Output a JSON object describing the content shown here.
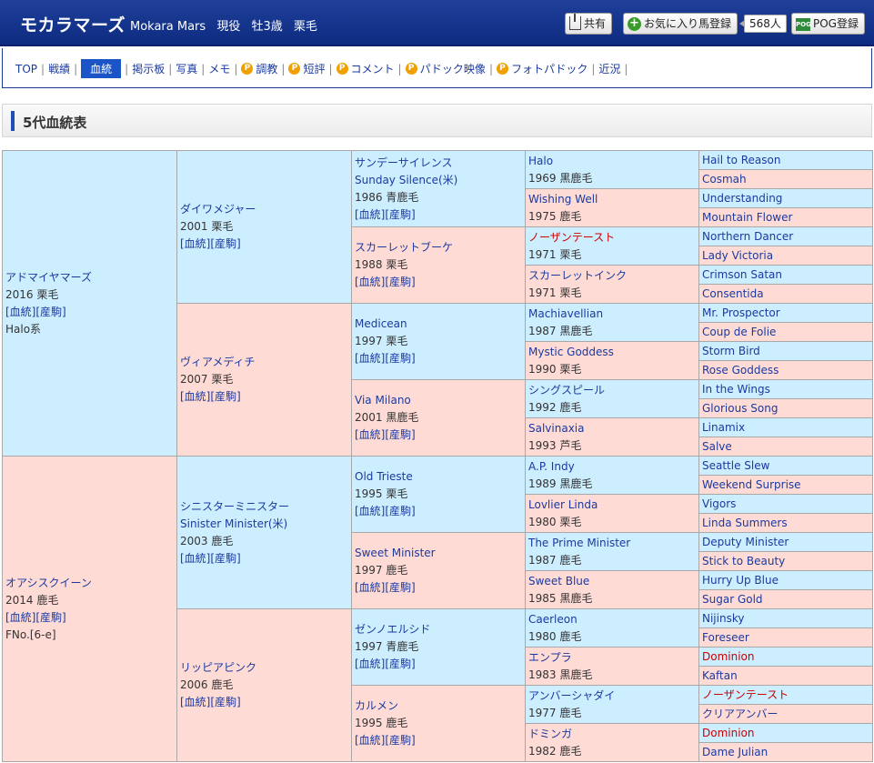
{
  "header": {
    "name": "モカラマーズ",
    "name_en": "Mokara Mars",
    "status": "現役",
    "sex_age": "牡3歳",
    "coat": "栗毛",
    "share_label": "共有",
    "favorite_label": "お気に入り馬登録",
    "favorite_count": "568人",
    "pog_label": "POG登録",
    "pog_icon_text": "POG"
  },
  "nav": {
    "items": [
      "TOP",
      "戦績",
      "血統",
      "掲示板",
      "写真",
      "メモ",
      "調教",
      "短評",
      "コメント",
      "パドック映像",
      "フォトパドック",
      "近況"
    ],
    "active": "血統",
    "premium_badge": "P"
  },
  "section": {
    "title": "5代血統表"
  },
  "links": {
    "pedigree": "[血統]",
    "foals": "[産駒]"
  },
  "pedigree": {
    "g1": [
      {
        "name": "アドマイヤマーズ",
        "year": "2016 栗毛",
        "extra": "Halo系",
        "sex": "sire"
      },
      {
        "name": "オアシスクイーン",
        "year": "2014 鹿毛",
        "extra": "FNo.[6-e]",
        "sex": "dam"
      }
    ],
    "g2": [
      {
        "name": "ダイワメジャー",
        "year": "2001 栗毛",
        "sex": "sire"
      },
      {
        "name": "ヴィアメディチ",
        "year": "2007 栗毛",
        "sex": "dam"
      },
      {
        "name": "シニスターミニスター",
        "name_en": "Sinister Minister(米)",
        "year": "2003 鹿毛",
        "sex": "sire"
      },
      {
        "name": "リッピアピンク",
        "year": "2006 鹿毛",
        "sex": "dam"
      }
    ],
    "g3": [
      {
        "name": "サンデーサイレンス",
        "name_en": "Sunday Silence(米)",
        "year": "1986 青鹿毛",
        "sex": "sire"
      },
      {
        "name": "スカーレットブーケ",
        "year": "1988 栗毛",
        "sex": "dam"
      },
      {
        "name": "Medicean",
        "year": "1997 栗毛",
        "sex": "sire"
      },
      {
        "name": "Via Milano",
        "year": "2001 黒鹿毛",
        "sex": "dam"
      },
      {
        "name": "Old Trieste",
        "year": "1995 栗毛",
        "sex": "sire"
      },
      {
        "name": "Sweet Minister",
        "year": "1997 鹿毛",
        "sex": "dam"
      },
      {
        "name": "ゼンノエルシド",
        "year": "1997 青鹿毛",
        "sex": "sire"
      },
      {
        "name": "カルメン",
        "year": "1995 鹿毛",
        "sex": "dam"
      }
    ],
    "g4": [
      {
        "name": "Halo",
        "year": "1969 黒鹿毛",
        "sex": "sire"
      },
      {
        "name": "Wishing Well",
        "year": "1975 鹿毛",
        "sex": "dam"
      },
      {
        "name": "ノーザンテースト",
        "year": "1971 栗毛",
        "sex": "sire",
        "red": true
      },
      {
        "name": "スカーレットインク",
        "year": "1971 栗毛",
        "sex": "dam"
      },
      {
        "name": "Machiavellian",
        "year": "1987 黒鹿毛",
        "sex": "sire"
      },
      {
        "name": "Mystic Goddess",
        "year": "1990 栗毛",
        "sex": "dam"
      },
      {
        "name": "シングスピール",
        "year": "1992 鹿毛",
        "sex": "sire"
      },
      {
        "name": "Salvinaxia",
        "year": "1993 芦毛",
        "sex": "dam"
      },
      {
        "name": "A.P. Indy",
        "year": "1989 黒鹿毛",
        "sex": "sire"
      },
      {
        "name": "Lovlier Linda",
        "year": "1980 栗毛",
        "sex": "dam"
      },
      {
        "name": "The Prime Minister",
        "year": "1987 鹿毛",
        "sex": "sire"
      },
      {
        "name": "Sweet Blue",
        "year": "1985 黒鹿毛",
        "sex": "dam"
      },
      {
        "name": "Caerleon",
        "year": "1980 鹿毛",
        "sex": "sire"
      },
      {
        "name": "エンプラ",
        "year": "1983 黒鹿毛",
        "sex": "dam"
      },
      {
        "name": "アンバーシャダイ",
        "year": "1977 鹿毛",
        "sex": "sire"
      },
      {
        "name": "ドミンガ",
        "year": "1982 鹿毛",
        "sex": "dam"
      }
    ],
    "g5": [
      {
        "name": "Hail to Reason",
        "sex": "sire"
      },
      {
        "name": "Cosmah",
        "sex": "dam"
      },
      {
        "name": "Understanding",
        "sex": "sire"
      },
      {
        "name": "Mountain Flower",
        "sex": "dam"
      },
      {
        "name": "Northern Dancer",
        "sex": "sire"
      },
      {
        "name": "Lady Victoria",
        "sex": "dam"
      },
      {
        "name": "Crimson Satan",
        "sex": "sire"
      },
      {
        "name": "Consentida",
        "sex": "dam"
      },
      {
        "name": "Mr. Prospector",
        "sex": "sire"
      },
      {
        "name": "Coup de Folie",
        "sex": "dam"
      },
      {
        "name": "Storm Bird",
        "sex": "sire"
      },
      {
        "name": "Rose Goddess",
        "sex": "dam"
      },
      {
        "name": "In the Wings",
        "sex": "sire"
      },
      {
        "name": "Glorious Song",
        "sex": "dam"
      },
      {
        "name": "Linamix",
        "sex": "sire"
      },
      {
        "name": "Salve",
        "sex": "dam"
      },
      {
        "name": "Seattle Slew",
        "sex": "sire"
      },
      {
        "name": "Weekend Surprise",
        "sex": "dam"
      },
      {
        "name": "Vigors",
        "sex": "sire"
      },
      {
        "name": "Linda Summers",
        "sex": "dam"
      },
      {
        "name": "Deputy Minister",
        "sex": "sire"
      },
      {
        "name": "Stick to Beauty",
        "sex": "dam"
      },
      {
        "name": "Hurry Up Blue",
        "sex": "sire"
      },
      {
        "name": "Sugar Gold",
        "sex": "dam"
      },
      {
        "name": "Nijinsky",
        "sex": "sire"
      },
      {
        "name": "Foreseer",
        "sex": "dam"
      },
      {
        "name": "Dominion",
        "sex": "sire",
        "red": true
      },
      {
        "name": "Kaftan",
        "sex": "dam"
      },
      {
        "name": "ノーザンテースト",
        "sex": "sire",
        "red": true
      },
      {
        "name": "クリアアンバー",
        "sex": "dam"
      },
      {
        "name": "Dominion",
        "sex": "sire",
        "red": true
      },
      {
        "name": "Dame Julian",
        "sex": "dam"
      }
    ]
  },
  "colors": {
    "header_bg": "#0d2b80",
    "sire_bg": "#cdeeff",
    "dam_bg": "#ffdbd6",
    "link": "#1a3aa0",
    "cross_red": "#cc0000"
  }
}
